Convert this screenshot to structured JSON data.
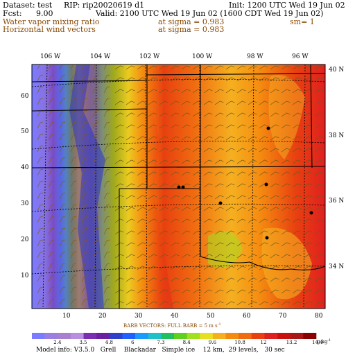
{
  "header": {
    "dataset": "Dataset: test",
    "rip": "RIP: rip20020619 d1",
    "init": "Init: 1200 UTC Wed 19 Jun 02",
    "fcst_label": "Fcst:",
    "fcst_value": "9.00",
    "valid": "Valid: 2100 UTC Wed 19 Jun 02 (1600 CDT Wed 19 Jun 02)",
    "field1": "Water vapor mixing ratio",
    "field1_level": "at sigma = 0.983",
    "field1_extra": "sm= 1",
    "field2": "Horizontal wind vectors",
    "field2_level": "at sigma = 0.983"
  },
  "map": {
    "lon_labels": [
      "106 W",
      "104 W",
      "102 W",
      "100 W",
      "98 W",
      "96 W"
    ],
    "lat_labels": [
      "40 N",
      "38 N",
      "36 N",
      "34 N"
    ],
    "y_ticks": [
      "60",
      "50",
      "40",
      "30",
      "20",
      "10"
    ],
    "x_ticks": [
      "10",
      "20",
      "30",
      "40",
      "50",
      "60",
      "70",
      "80"
    ]
  },
  "barb_caption": "BARB VECTORS: FULL BARB = 5 m s",
  "colorbar": {
    "colors": [
      "#7b7bff",
      "#9b7fe0",
      "#a97fcf",
      "#b88fe0",
      "#7a2fb0",
      "#6c1fa0",
      "#3040c8",
      "#2060ff",
      "#1a9aff",
      "#20c0c8",
      "#20c060",
      "#60d020",
      "#a0e020",
      "#e6e020",
      "#f5b020",
      "#f58a10",
      "#f06a10",
      "#e84010",
      "#e02020",
      "#c81010",
      "#a81818",
      "#8b0000"
    ],
    "labels": [
      "2.4",
      "3.5",
      "4.8",
      "6",
      "7.3",
      "8.4",
      "9.6",
      "10.8",
      "12",
      "13.2",
      "14.4"
    ],
    "units": "g kg"
  },
  "model_info": "Model info: V3.5.0   Grell    Blackadar   Simple ice    12 km,  29 levels,   30 sec"
}
